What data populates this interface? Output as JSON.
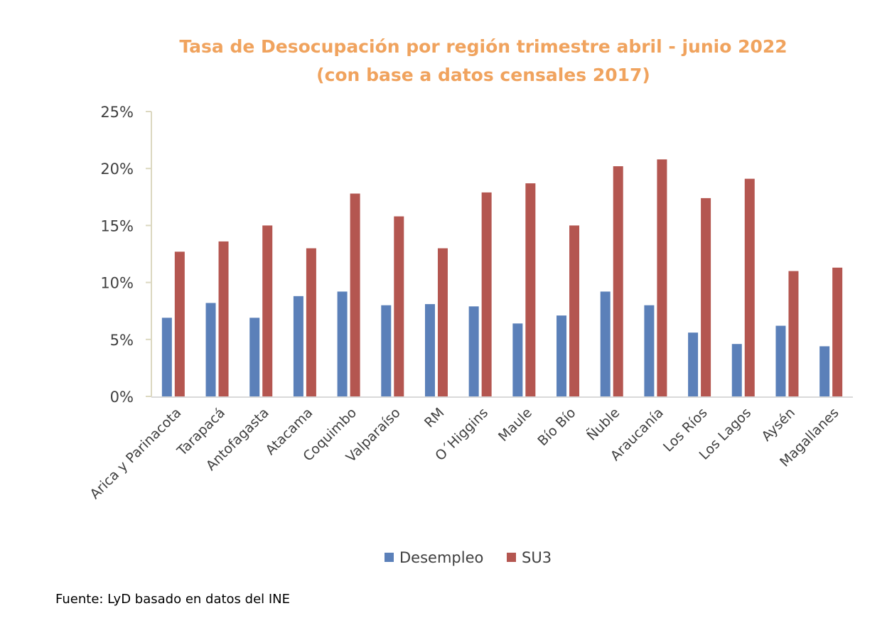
{
  "chart_data": {
    "type": "bar",
    "title": [
      "Tasa de Desocupación por región trimestre abril - junio 2022",
      "(con base a datos censales 2017)"
    ],
    "xlabel": "",
    "ylabel": "",
    "ylim": [
      0,
      25
    ],
    "yticks": [
      0,
      5,
      10,
      15,
      20,
      25
    ],
    "ytick_labels": [
      "0%",
      "5%",
      "10%",
      "15%",
      "20%",
      "25%"
    ],
    "grid": false,
    "legend_position": "bottom",
    "categories": [
      "Arica y Parinacota",
      "Tarapacá",
      "Antofagasta",
      "Atacama",
      "Coquimbo",
      "Valparaíso",
      "RM",
      "O´Higgins",
      "Maule",
      "Bío Bío",
      "Ñuble",
      "Araucanía",
      "Los Ríos",
      "Los Lagos",
      "Aysén",
      "Magallanes"
    ],
    "series": [
      {
        "name": "Desempleo",
        "color": "#5b80b9",
        "values": [
          6.9,
          8.2,
          6.9,
          8.8,
          9.2,
          8.0,
          8.1,
          7.9,
          6.4,
          7.1,
          9.2,
          8.0,
          5.6,
          4.6,
          6.2,
          4.4
        ]
      },
      {
        "name": "SU3",
        "color": "#b45650",
        "values": [
          12.7,
          13.6,
          15.0,
          13.0,
          17.8,
          15.8,
          13.0,
          17.9,
          18.7,
          15.0,
          20.2,
          20.8,
          17.4,
          19.1,
          11.0,
          11.3
        ]
      }
    ]
  },
  "source": "Fuente: LyD basado en datos del INE"
}
